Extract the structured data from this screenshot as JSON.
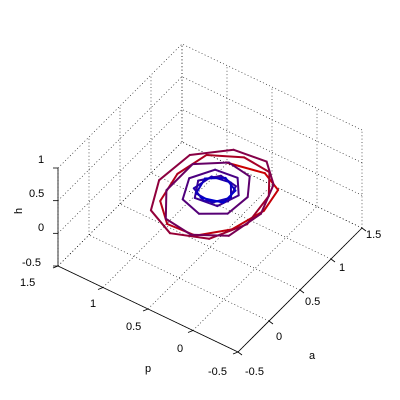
{
  "chart_data": {
    "type": "line",
    "title": "",
    "view": "3d",
    "xlabel": "a",
    "ylabel": "p",
    "zlabel": "h",
    "xlim": [
      -0.5,
      1.5
    ],
    "ylim": [
      -0.5,
      1.5
    ],
    "zlim": [
      -0.5,
      1
    ],
    "x_ticks": [
      "-0.5",
      "0",
      "0.5",
      "1",
      "1.5"
    ],
    "y_ticks": [
      "-0.5",
      "0",
      "0.5",
      "1",
      "1.5"
    ],
    "z_ticks": [
      "-0.5",
      "0",
      "0.5",
      "1"
    ],
    "grid": true,
    "legend": "none",
    "colors": {
      "start": "#cc0000",
      "end": "#0000cc"
    },
    "trajectory": {
      "description_color": "red to blue along time",
      "center": {
        "a": 0.55,
        "p": 0.5,
        "h": 0.3
      },
      "points": [
        [
          0.9,
          0.6,
          0.35
        ],
        [
          0.95,
          0.2,
          0.4
        ],
        [
          0.8,
          -0.05,
          0.45
        ],
        [
          0.5,
          -0.1,
          0.45
        ],
        [
          0.2,
          0.05,
          0.35
        ],
        [
          0.05,
          0.35,
          0.2
        ],
        [
          0.1,
          0.7,
          0.1
        ],
        [
          0.35,
          0.95,
          0.05
        ],
        [
          0.7,
          1.0,
          0.1
        ],
        [
          0.95,
          0.85,
          0.25
        ],
        [
          1.05,
          0.5,
          0.35
        ],
        [
          0.95,
          0.15,
          0.45
        ],
        [
          0.65,
          -0.05,
          0.5
        ],
        [
          0.3,
          -0.05,
          0.4
        ],
        [
          0.05,
          0.2,
          0.25
        ],
        [
          0.0,
          0.6,
          0.12
        ],
        [
          0.2,
          0.95,
          0.05
        ],
        [
          0.55,
          1.1,
          0.08
        ],
        [
          0.9,
          1.0,
          0.2
        ],
        [
          1.1,
          0.65,
          0.32
        ],
        [
          1.05,
          0.25,
          0.45
        ],
        [
          0.8,
          0.0,
          0.5
        ],
        [
          0.45,
          -0.1,
          0.45
        ],
        [
          0.15,
          0.05,
          0.3
        ],
        [
          0.05,
          0.4,
          0.18
        ],
        [
          0.15,
          0.75,
          0.1
        ],
        [
          0.45,
          0.95,
          0.12
        ],
        [
          0.8,
          0.9,
          0.22
        ],
        [
          0.95,
          0.6,
          0.3
        ],
        [
          0.85,
          0.3,
          0.38
        ],
        [
          0.6,
          0.15,
          0.4
        ],
        [
          0.35,
          0.2,
          0.35
        ],
        [
          0.25,
          0.45,
          0.28
        ],
        [
          0.35,
          0.7,
          0.24
        ],
        [
          0.6,
          0.8,
          0.26
        ],
        [
          0.8,
          0.65,
          0.3
        ],
        [
          0.8,
          0.4,
          0.34
        ],
        [
          0.6,
          0.25,
          0.36
        ],
        [
          0.4,
          0.35,
          0.32
        ],
        [
          0.4,
          0.6,
          0.28
        ],
        [
          0.6,
          0.7,
          0.29
        ],
        [
          0.75,
          0.55,
          0.32
        ],
        [
          0.7,
          0.35,
          0.34
        ],
        [
          0.5,
          0.3,
          0.33
        ],
        [
          0.4,
          0.5,
          0.3
        ],
        [
          0.5,
          0.68,
          0.28
        ],
        [
          0.7,
          0.62,
          0.31
        ],
        [
          0.72,
          0.42,
          0.33
        ],
        [
          0.55,
          0.3,
          0.34
        ],
        [
          0.42,
          0.42,
          0.31
        ],
        [
          0.45,
          0.62,
          0.29
        ],
        [
          0.65,
          0.66,
          0.3
        ],
        [
          0.75,
          0.5,
          0.32
        ],
        [
          0.65,
          0.32,
          0.34
        ],
        [
          0.47,
          0.33,
          0.32
        ],
        [
          0.42,
          0.55,
          0.3
        ]
      ]
    }
  }
}
